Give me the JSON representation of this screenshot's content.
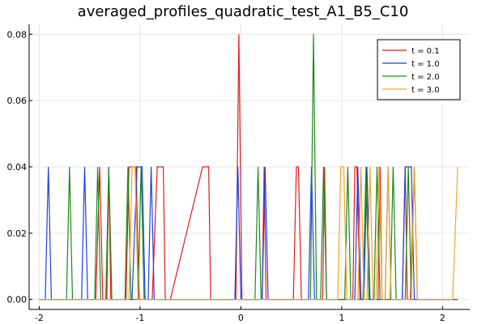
{
  "chart_data": {
    "type": "line",
    "title": "averaged_profiles_quadratic_test_A1_B5_C10",
    "xlabel": "",
    "ylabel": "",
    "xlim": [
      -2.1,
      2.27
    ],
    "ylim": [
      -0.003,
      0.083
    ],
    "xticks": [
      -2,
      -1,
      0,
      1,
      2
    ],
    "xtick_labels": [
      "-2",
      "-1",
      "0",
      "1",
      "2"
    ],
    "yticks": [
      0.0,
      0.02,
      0.04,
      0.06,
      0.08
    ],
    "ytick_labels": [
      "0.00",
      "0.02",
      "0.04",
      "0.06",
      "0.08"
    ],
    "grid": true,
    "legend_position": "top-right",
    "series": [
      {
        "name": "t = 0.1",
        "color": "#e41a1c",
        "x": [
          -2.0,
          -1.44,
          -1.4,
          -1.37,
          -1.33,
          -1.31,
          -1.29,
          -1.27,
          -1.14,
          -1.11,
          -1.04,
          -1.01,
          -0.88,
          -0.83,
          -0.81,
          -0.77,
          -0.75,
          -0.73,
          -0.7,
          -0.38,
          -0.36,
          -0.32,
          -0.3,
          -0.05,
          -0.02,
          0.01,
          0.21,
          0.23,
          0.25,
          0.28,
          0.52,
          0.55,
          0.57,
          0.6,
          0.81,
          0.83,
          0.85,
          0.88,
          1.11,
          1.13,
          1.15,
          1.18,
          1.36,
          1.38,
          1.4,
          1.43,
          1.6,
          1.63,
          1.65,
          1.68,
          1.72,
          1.75,
          2.15
        ],
        "y": [
          0,
          0,
          0.04,
          0,
          0,
          0.04,
          0,
          0,
          0,
          0.04,
          0.04,
          0,
          0,
          0.04,
          0.04,
          0.04,
          0,
          0,
          0,
          0.04,
          0.04,
          0.04,
          0,
          0,
          0.08,
          0,
          0,
          0.04,
          0,
          0,
          0,
          0.04,
          0.04,
          0,
          0,
          0.04,
          0,
          0,
          0,
          0.04,
          0.04,
          0,
          0,
          0.04,
          0,
          0,
          0,
          0.04,
          0,
          0,
          0.04,
          0,
          0
        ]
      },
      {
        "name": "t = 1.0",
        "color": "#1f3fe0",
        "x": [
          -2.0,
          -1.94,
          -1.91,
          -1.88,
          -1.58,
          -1.55,
          -1.52,
          -1.08,
          -1.03,
          -0.98,
          -0.95,
          -0.92,
          -0.89,
          -0.86,
          -0.83,
          -0.06,
          -0.03,
          0.0,
          0.21,
          0.24,
          0.27,
          0.67,
          0.7,
          0.73,
          1.13,
          1.16,
          1.19,
          1.22,
          1.25,
          1.28,
          1.43,
          1.46,
          1.49,
          1.6,
          1.63,
          1.66,
          1.69,
          1.72,
          1.75,
          2.15
        ],
        "y": [
          0,
          0,
          0.04,
          0,
          0,
          0.04,
          0,
          0,
          0.04,
          0.04,
          0,
          0,
          0.04,
          0,
          0,
          0,
          0.04,
          0,
          0,
          0.04,
          0,
          0,
          0.04,
          0,
          0,
          0.04,
          0,
          0,
          0.04,
          0,
          0,
          0.04,
          0,
          0,
          0.04,
          0.04,
          0.04,
          0,
          0,
          0
        ]
      },
      {
        "name": "t = 2.0",
        "color": "#1a8a1a",
        "x": [
          -2.0,
          -1.73,
          -1.7,
          -1.67,
          -1.45,
          -1.42,
          -1.39,
          -1.34,
          -1.31,
          -1.28,
          -1.15,
          -1.12,
          -1.09,
          -1.02,
          -0.99,
          -0.96,
          0.14,
          0.17,
          0.2,
          0.69,
          0.72,
          0.75,
          0.79,
          0.82,
          0.85,
          1.03,
          1.06,
          1.09,
          1.21,
          1.24,
          1.27,
          1.32,
          1.35,
          1.38,
          1.48,
          1.51,
          1.54,
          1.63,
          1.66,
          1.69,
          2.15
        ],
        "y": [
          0,
          0,
          0.04,
          0,
          0,
          0.04,
          0,
          0,
          0.04,
          0,
          0,
          0.04,
          0,
          0,
          0.04,
          0,
          0,
          0.04,
          0,
          0,
          0.08,
          0,
          0,
          0.04,
          0,
          0,
          0.04,
          0,
          0,
          0.04,
          0,
          0,
          0.04,
          0,
          0,
          0.04,
          0,
          0,
          0.04,
          0,
          0
        ]
      },
      {
        "name": "t = 3.0",
        "color": "#f5a623",
        "x": [
          -2.0,
          -1.11,
          -1.08,
          -1.05,
          -1.02,
          -0.99,
          0.96,
          0.99,
          1.02,
          1.05,
          1.08,
          1.16,
          1.19,
          1.22,
          1.25,
          1.28,
          1.31,
          1.34,
          1.37,
          1.4,
          1.43,
          1.46,
          1.49,
          1.69,
          1.72,
          1.75,
          2.1,
          2.15
        ],
        "y": [
          0,
          0,
          0.04,
          0.04,
          0,
          0,
          0,
          0.04,
          0.04,
          0,
          0,
          0,
          0.04,
          0,
          0,
          0.04,
          0,
          0,
          0.04,
          0,
          0,
          0.04,
          0,
          0,
          0.04,
          0,
          0,
          0.04
        ]
      }
    ]
  }
}
